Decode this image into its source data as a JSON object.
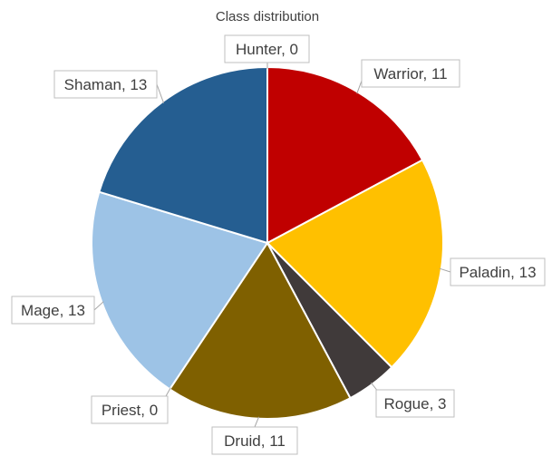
{
  "chart_data": {
    "type": "pie",
    "title": "Class distribution",
    "categories": [
      "Warrior",
      "Paladin",
      "Rogue",
      "Druid",
      "Priest",
      "Mage",
      "Shaman",
      "Hunter"
    ],
    "values": [
      11,
      13,
      3,
      11,
      0,
      13,
      13,
      0
    ],
    "colors": [
      "#c00000",
      "#ffc000",
      "#403a3a",
      "#7f6000",
      "#9dc3e6",
      "#9dc3e6",
      "#255e91",
      "#255e91"
    ],
    "data_labels": [
      "Warrior, 11",
      "Paladin, 13",
      "Rogue, 3",
      "Druid, 11",
      "Priest, 0",
      "Mage, 13",
      "Shaman, 13",
      "Hunter, 0"
    ],
    "start_angle_deg": 0,
    "direction": "clockwise"
  }
}
